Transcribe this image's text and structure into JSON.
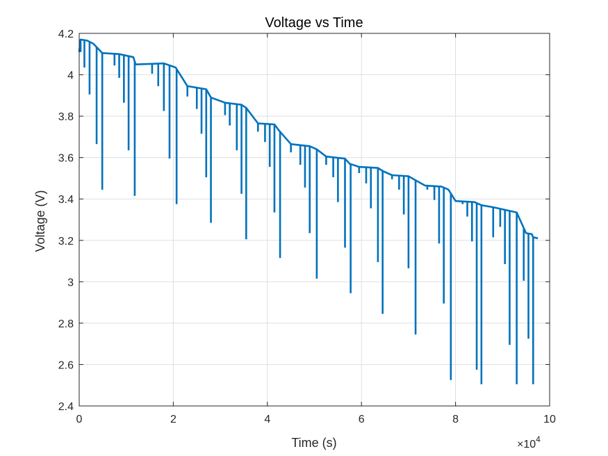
{
  "chart_data": {
    "type": "line",
    "title": "Voltage vs Time",
    "xlabel": "Time (s)",
    "ylabel": "Voltage (V)",
    "x_exponent_label": "×10",
    "x_exponent_power": "4",
    "xlim": [
      0,
      100000
    ],
    "ylim": [
      2.4,
      4.2
    ],
    "x_ticks": [
      0,
      20000,
      40000,
      60000,
      80000,
      100000
    ],
    "x_tick_labels": [
      "0",
      "2",
      "4",
      "6",
      "8",
      "10"
    ],
    "y_ticks": [
      2.4,
      2.6,
      2.8,
      3.0,
      3.2,
      3.4,
      3.6,
      3.8,
      4.0,
      4.2
    ],
    "y_tick_labels": [
      "2.4",
      "2.6",
      "2.8",
      "3",
      "3.2",
      "3.4",
      "3.6",
      "3.8",
      "4",
      "4.2"
    ],
    "grid": true,
    "line_color": "#0072BD",
    "baseline": [
      [
        0,
        4.11
      ],
      [
        300,
        4.17
      ],
      [
        1700,
        4.165
      ],
      [
        3000,
        4.15
      ],
      [
        4900,
        4.105
      ],
      [
        8500,
        4.1
      ],
      [
        11500,
        4.085
      ],
      [
        12000,
        4.05
      ],
      [
        18000,
        4.055
      ],
      [
        20500,
        4.035
      ],
      [
        23000,
        3.945
      ],
      [
        27000,
        3.93
      ],
      [
        28000,
        3.89
      ],
      [
        31000,
        3.865
      ],
      [
        34500,
        3.855
      ],
      [
        35500,
        3.84
      ],
      [
        38000,
        3.765
      ],
      [
        41500,
        3.76
      ],
      [
        42500,
        3.73
      ],
      [
        45000,
        3.665
      ],
      [
        49000,
        3.655
      ],
      [
        50500,
        3.64
      ],
      [
        52500,
        3.605
      ],
      [
        56500,
        3.595
      ],
      [
        57500,
        3.57
      ],
      [
        59500,
        3.555
      ],
      [
        63500,
        3.55
      ],
      [
        64500,
        3.535
      ],
      [
        66500,
        3.515
      ],
      [
        70000,
        3.51
      ],
      [
        71500,
        3.49
      ],
      [
        73500,
        3.465
      ],
      [
        77000,
        3.46
      ],
      [
        78500,
        3.445
      ],
      [
        80000,
        3.39
      ],
      [
        84000,
        3.385
      ],
      [
        85500,
        3.37
      ],
      [
        88000,
        3.36
      ],
      [
        91000,
        3.345
      ],
      [
        93000,
        3.335
      ],
      [
        95000,
        3.235
      ],
      [
        96200,
        3.23
      ],
      [
        96500,
        3.215
      ],
      [
        97500,
        3.21
      ]
    ],
    "dips": [
      [
        300,
        4.11
      ],
      [
        1100,
        4.035
      ],
      [
        2200,
        3.905
      ],
      [
        3700,
        3.665
      ],
      [
        4900,
        3.445
      ],
      [
        7500,
        4.045
      ],
      [
        8500,
        3.985
      ],
      [
        9500,
        3.865
      ],
      [
        10500,
        3.635
      ],
      [
        11800,
        3.415
      ],
      [
        15500,
        4.005
      ],
      [
        16800,
        3.945
      ],
      [
        18000,
        3.825
      ],
      [
        19200,
        3.595
      ],
      [
        20700,
        3.375
      ],
      [
        23000,
        3.895
      ],
      [
        25000,
        3.835
      ],
      [
        26000,
        3.715
      ],
      [
        27000,
        3.505
      ],
      [
        28000,
        3.285
      ],
      [
        31000,
        3.805
      ],
      [
        32000,
        3.755
      ],
      [
        33500,
        3.635
      ],
      [
        34500,
        3.425
      ],
      [
        35500,
        3.205
      ],
      [
        38000,
        3.725
      ],
      [
        39500,
        3.675
      ],
      [
        40500,
        3.555
      ],
      [
        41500,
        3.335
      ],
      [
        42700,
        3.115
      ],
      [
        45000,
        3.625
      ],
      [
        47000,
        3.565
      ],
      [
        48000,
        3.455
      ],
      [
        49000,
        3.235
      ],
      [
        50500,
        3.015
      ],
      [
        52500,
        3.565
      ],
      [
        54000,
        3.505
      ],
      [
        55000,
        3.385
      ],
      [
        56500,
        3.165
      ],
      [
        57700,
        2.945
      ],
      [
        59500,
        3.525
      ],
      [
        61000,
        3.475
      ],
      [
        62000,
        3.355
      ],
      [
        63500,
        3.095
      ],
      [
        64500,
        2.845
      ],
      [
        66500,
        3.495
      ],
      [
        68000,
        3.445
      ],
      [
        69000,
        3.325
      ],
      [
        70000,
        3.065
      ],
      [
        71500,
        2.745
      ],
      [
        74000,
        3.445
      ],
      [
        75500,
        3.395
      ],
      [
        76500,
        3.185
      ],
      [
        77500,
        2.895
      ],
      [
        79000,
        2.525
      ],
      [
        81500,
        3.375
      ],
      [
        82500,
        3.315
      ],
      [
        83500,
        3.195
      ],
      [
        84500,
        2.575
      ],
      [
        85500,
        2.505
      ],
      [
        88000,
        3.215
      ],
      [
        89500,
        3.265
      ],
      [
        90500,
        3.085
      ],
      [
        91500,
        2.695
      ],
      [
        93000,
        2.505
      ],
      [
        94500,
        3.005
      ],
      [
        95500,
        2.725
      ],
      [
        96500,
        2.505
      ]
    ]
  }
}
